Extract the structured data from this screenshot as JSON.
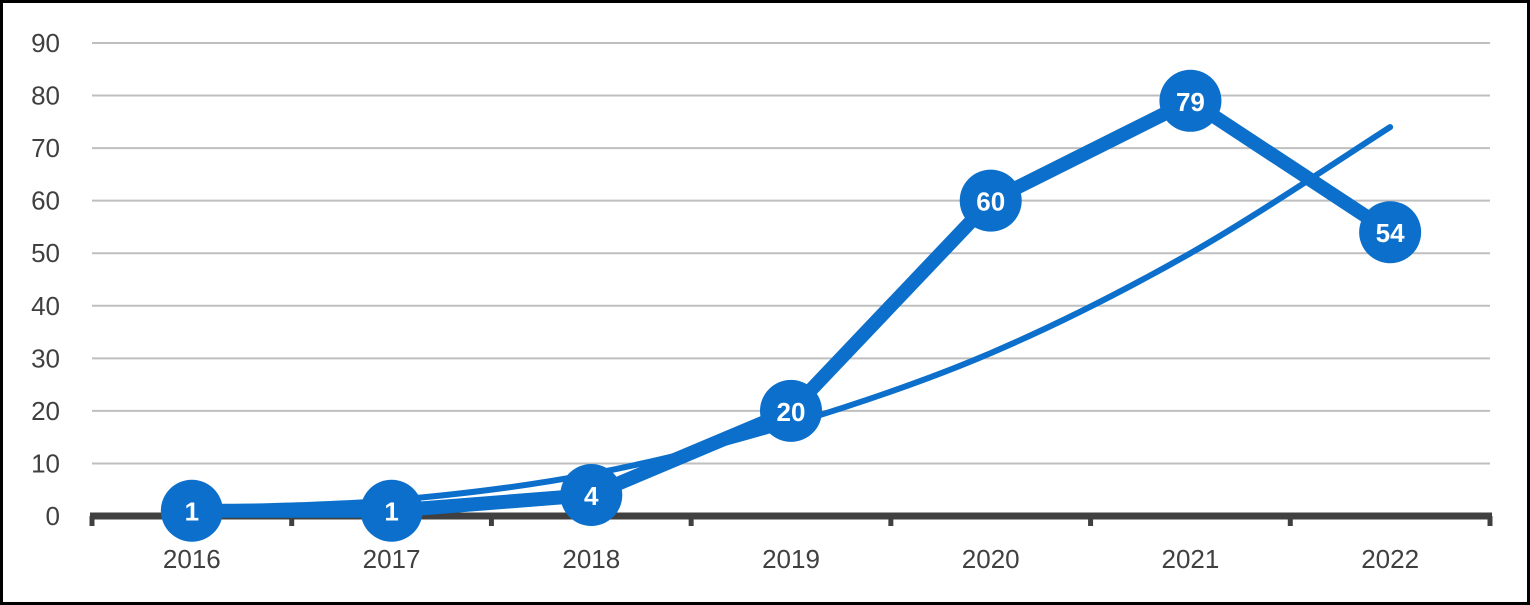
{
  "chart_data": {
    "type": "line",
    "categories": [
      "2016",
      "2017",
      "2018",
      "2019",
      "2020",
      "2021",
      "2022"
    ],
    "series": [
      {
        "values": [
          1,
          1,
          4,
          20,
          60,
          79,
          54
        ],
        "data_labels": [
          "1",
          "1",
          "4",
          "20",
          "60",
          "79",
          "54"
        ]
      },
      {
        "values": [
          1.5,
          3,
          8,
          17.5,
          31,
          50,
          74
        ]
      }
    ],
    "title": "",
    "xlabel": "",
    "ylabel": "",
    "ylim": [
      0,
      90
    ],
    "yticks": [
      "0",
      "10",
      "20",
      "30",
      "40",
      "50",
      "60",
      "70",
      "80",
      "90"
    ],
    "grid": true,
    "legend": "none",
    "colors": {
      "line": "#0b6fcb",
      "grid": "#bfbfbf",
      "axis": "#404040",
      "text": "#404040",
      "frame": "#000000"
    }
  }
}
